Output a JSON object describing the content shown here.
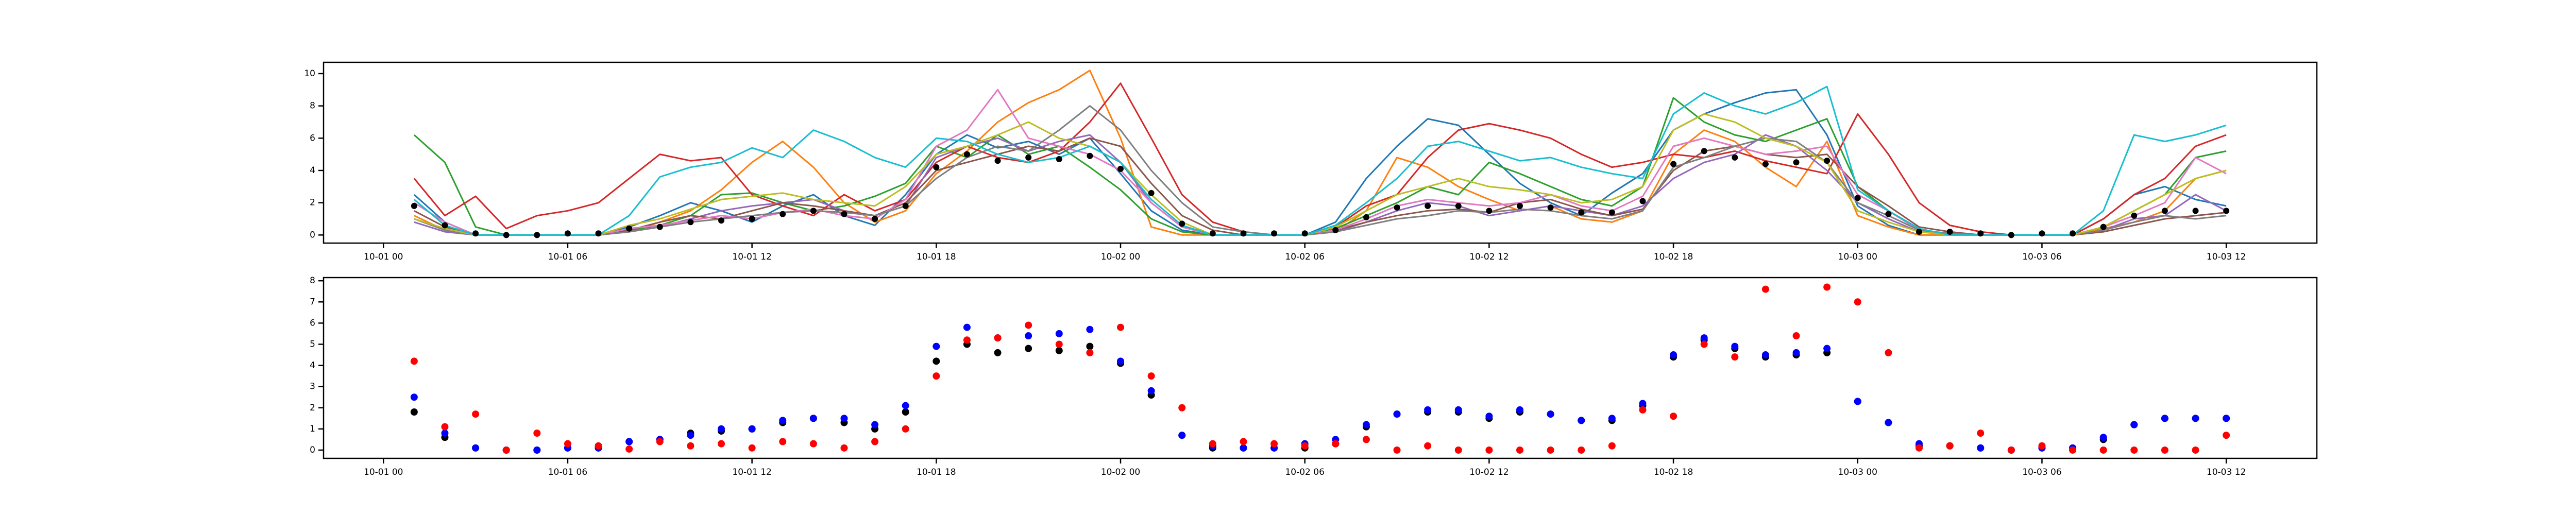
{
  "chart_data": [
    {
      "type": "line",
      "x": [
        "10-01 01",
        "10-01 02",
        "10-01 03",
        "10-01 04",
        "10-01 05",
        "10-01 06",
        "10-01 07",
        "10-01 08",
        "10-01 09",
        "10-01 10",
        "10-01 11",
        "10-01 12",
        "10-01 13",
        "10-01 14",
        "10-01 15",
        "10-01 16",
        "10-01 17",
        "10-01 18",
        "10-01 19",
        "10-01 20",
        "10-01 21",
        "10-01 22",
        "10-01 23",
        "10-02 00",
        "10-02 01",
        "10-02 02",
        "10-02 03",
        "10-02 04",
        "10-02 05",
        "10-02 06",
        "10-02 07",
        "10-02 08",
        "10-02 09",
        "10-02 10",
        "10-02 11",
        "10-02 12",
        "10-02 13",
        "10-02 14",
        "10-02 15",
        "10-02 16",
        "10-02 17",
        "10-02 18",
        "10-02 19",
        "10-02 20",
        "10-02 21",
        "10-02 22",
        "10-02 23",
        "10-03 00",
        "10-03 01",
        "10-03 02",
        "10-03 03",
        "10-03 04",
        "10-03 05",
        "10-03 06",
        "10-03 07",
        "10-03 08",
        "10-03 09",
        "10-03 10",
        "10-03 11",
        "10-03 12"
      ],
      "xlim": [
        "09-30 22:03",
        "10-03 14:57"
      ],
      "xticks": [
        "10-01 00",
        "10-01 06",
        "10-01 12",
        "10-01 18",
        "10-02 00",
        "10-02 06",
        "10-02 12",
        "10-02 18",
        "10-03 00",
        "10-03 06",
        "10-03 12"
      ],
      "ylim": [
        -0.5,
        10.7
      ],
      "yticks": [
        0,
        2,
        4,
        6,
        8,
        10
      ],
      "series": [
        {
          "color": "#1f77b4",
          "mode": "line",
          "values": [
            2.5,
            0.8,
            0,
            0,
            0,
            0,
            0,
            0.5,
            1.2,
            2.0,
            1.5,
            0.8,
            1.8,
            2.5,
            1.2,
            0.6,
            2.5,
            5.0,
            6.2,
            5.4,
            5.8,
            5.0,
            6.0,
            3.8,
            1.5,
            0.3,
            0,
            0,
            0,
            0,
            0.8,
            3.5,
            5.5,
            7.2,
            6.8,
            5.0,
            3.2,
            2.0,
            1.2,
            2.6,
            3.8,
            6.5,
            7.5,
            8.2,
            8.8,
            9.0,
            6.2,
            1.8,
            0.6,
            0,
            0,
            0,
            0,
            0,
            0,
            1.0,
            2.5,
            3.0,
            2.2,
            1.8
          ]
        },
        {
          "color": "#ff7f0e",
          "mode": "line",
          "values": [
            1.2,
            0.3,
            0,
            0,
            0,
            0,
            0,
            0.2,
            0.8,
            1.5,
            2.8,
            4.5,
            5.8,
            4.2,
            2.0,
            0.8,
            1.5,
            3.8,
            5.2,
            7.0,
            8.2,
            9.0,
            10.2,
            6.0,
            0.5,
            0,
            0,
            0,
            0,
            0,
            0.2,
            1.5,
            4.8,
            4.2,
            3.0,
            2.2,
            1.5,
            1.8,
            1.0,
            0.8,
            1.5,
            5.0,
            6.5,
            5.8,
            4.2,
            3.0,
            5.8,
            1.2,
            0.5,
            0,
            0,
            0,
            0,
            0,
            0,
            0.4,
            0.8,
            1.5,
            3.5,
            4.0
          ]
        },
        {
          "color": "#2ca02c",
          "mode": "line",
          "values": [
            6.2,
            4.5,
            0.5,
            0,
            0,
            0,
            0,
            0.3,
            0.6,
            1.2,
            2.5,
            2.6,
            2.0,
            1.5,
            1.8,
            2.4,
            3.2,
            5.5,
            4.8,
            6.2,
            5.0,
            5.5,
            4.2,
            2.8,
            1.0,
            0.2,
            0,
            0,
            0,
            0,
            0.4,
            1.2,
            2.0,
            3.0,
            2.5,
            4.5,
            3.8,
            3.0,
            2.2,
            1.8,
            3.0,
            8.5,
            7.0,
            6.2,
            5.8,
            6.5,
            7.2,
            3.0,
            1.5,
            0.3,
            0,
            0,
            0,
            0,
            0,
            0.5,
            1.5,
            2.5,
            4.8,
            5.2
          ]
        },
        {
          "color": "#d62728",
          "mode": "line",
          "values": [
            3.5,
            1.2,
            2.4,
            0.4,
            1.2,
            1.5,
            2.0,
            3.5,
            5.0,
            4.6,
            4.8,
            2.5,
            1.8,
            1.2,
            2.5,
            1.5,
            2.2,
            4.5,
            5.5,
            4.8,
            4.5,
            5.2,
            7.0,
            9.4,
            6.0,
            2.5,
            0.8,
            0.2,
            0,
            0,
            0.5,
            1.8,
            2.5,
            4.8,
            6.5,
            6.9,
            6.5,
            6.0,
            5.0,
            4.2,
            4.5,
            5.0,
            4.8,
            5.2,
            4.6,
            4.2,
            3.8,
            7.5,
            5.0,
            2.0,
            0.6,
            0.2,
            0,
            0,
            0,
            1.0,
            2.5,
            3.5,
            5.5,
            6.2
          ]
        },
        {
          "color": "#9467bd",
          "mode": "line",
          "values": [
            0.8,
            0.2,
            0,
            0,
            0,
            0,
            0,
            0.2,
            0.5,
            1.0,
            1.5,
            1.8,
            2.0,
            2.2,
            1.5,
            1.2,
            1.8,
            4.8,
            5.5,
            6.0,
            5.2,
            5.8,
            6.2,
            4.5,
            2.0,
            0.5,
            0,
            0,
            0,
            0,
            0.2,
            0.8,
            1.5,
            2.0,
            1.8,
            1.2,
            1.5,
            1.8,
            1.5,
            1.2,
            1.8,
            3.5,
            4.5,
            5.0,
            6.2,
            5.5,
            4.0,
            2.0,
            1.0,
            0.2,
            0,
            0,
            0,
            0,
            0,
            0.3,
            1.0,
            1.2,
            2.5,
            1.5
          ]
        },
        {
          "color": "#8c564b",
          "mode": "line",
          "values": [
            1.5,
            0.5,
            0,
            0,
            0,
            0,
            0,
            0.3,
            0.8,
            1.2,
            1.0,
            1.5,
            2.0,
            1.8,
            1.5,
            1.2,
            2.0,
            4.0,
            4.5,
            5.0,
            5.5,
            5.2,
            6.0,
            5.5,
            3.2,
            1.2,
            0.3,
            0,
            0,
            0,
            0.3,
            0.8,
            1.2,
            1.5,
            1.6,
            1.4,
            2.0,
            2.2,
            1.6,
            1.2,
            1.6,
            4.0,
            5.2,
            5.5,
            5.0,
            4.8,
            5.0,
            3.0,
            1.8,
            0.5,
            0.2,
            0,
            0,
            0,
            0,
            0.2,
            0.6,
            1.0,
            1.2,
            1.4
          ]
        },
        {
          "color": "#e377c2",
          "mode": "line",
          "values": [
            2.0,
            0.8,
            0,
            0,
            0,
            0,
            0,
            0.4,
            0.6,
            0.9,
            1.2,
            1.0,
            1.4,
            1.6,
            1.2,
            1.0,
            2.2,
            5.5,
            6.5,
            9.0,
            6.0,
            5.5,
            5.0,
            4.0,
            2.0,
            0.5,
            0,
            0,
            0,
            0,
            0.3,
            1.0,
            1.8,
            2.2,
            2.0,
            1.8,
            2.0,
            2.5,
            1.8,
            1.5,
            2.4,
            5.5,
            6.0,
            5.5,
            5.0,
            5.2,
            5.5,
            2.5,
            1.5,
            0.3,
            0,
            0,
            0,
            0,
            0,
            0.5,
            1.2,
            2.0,
            4.8,
            3.8
          ]
        },
        {
          "color": "#7f7f7f",
          "mode": "line",
          "values": [
            1.0,
            0.3,
            0,
            0,
            0,
            0,
            0,
            0.2,
            0.5,
            0.8,
            1.0,
            1.2,
            1.4,
            1.5,
            1.4,
            1.2,
            1.8,
            3.5,
            4.8,
            5.5,
            5.2,
            6.5,
            8.0,
            6.5,
            4.0,
            2.0,
            0.5,
            0.2,
            0,
            0,
            0.2,
            0.6,
            1.0,
            1.2,
            1.5,
            1.4,
            1.6,
            1.5,
            1.2,
            1.0,
            1.5,
            4.2,
            4.8,
            5.5,
            6.0,
            5.8,
            4.5,
            2.0,
            1.2,
            0.3,
            0.1,
            0,
            0,
            0,
            0,
            0.3,
            0.8,
            1.2,
            1.0,
            1.2
          ]
        },
        {
          "color": "#bcbd22",
          "mode": "line",
          "values": [
            1.0,
            0.4,
            0,
            0,
            0,
            0,
            0,
            0.6,
            1.0,
            1.6,
            2.2,
            2.4,
            2.6,
            2.2,
            2.0,
            1.8,
            3.0,
            5.0,
            5.5,
            6.2,
            7.0,
            6.0,
            5.5,
            4.5,
            2.5,
            0.8,
            0,
            0,
            0,
            0,
            0.5,
            1.5,
            2.5,
            3.0,
            3.5,
            3.0,
            2.8,
            2.5,
            2.0,
            2.2,
            3.0,
            6.5,
            7.5,
            7.0,
            6.0,
            5.5,
            4.5,
            1.5,
            0.8,
            0.2,
            0,
            0,
            0,
            0,
            0,
            0.5,
            1.5,
            2.5,
            3.5,
            4.0
          ]
        },
        {
          "color": "#17becf",
          "mode": "line",
          "values": [
            2.2,
            0.6,
            0,
            0,
            0,
            0,
            0,
            1.2,
            3.6,
            4.2,
            4.5,
            5.4,
            4.8,
            6.5,
            5.8,
            4.8,
            4.2,
            6.0,
            5.8,
            5.0,
            4.5,
            4.8,
            5.5,
            4.5,
            2.2,
            0.6,
            0,
            0,
            0,
            0,
            0.6,
            2.0,
            3.5,
            5.5,
            5.8,
            5.2,
            4.6,
            4.8,
            4.2,
            3.8,
            3.5,
            7.5,
            8.8,
            8.0,
            7.5,
            8.2,
            9.2,
            2.8,
            1.5,
            0.4,
            0,
            0,
            0,
            0,
            0,
            1.5,
            6.2,
            5.8,
            6.2,
            6.8
          ]
        },
        {
          "color": "#000000",
          "mode": "markers",
          "values": [
            1.8,
            0.6,
            0.1,
            0,
            0,
            0.1,
            0.1,
            0.4,
            0.5,
            0.8,
            0.9,
            1.0,
            1.3,
            1.5,
            1.3,
            1.0,
            1.8,
            4.2,
            5.0,
            4.6,
            4.8,
            4.7,
            4.9,
            4.1,
            2.6,
            0.7,
            0.1,
            0.1,
            0.1,
            0.1,
            0.3,
            1.1,
            1.7,
            1.8,
            1.8,
            1.5,
            1.8,
            1.7,
            1.4,
            1.4,
            2.1,
            4.4,
            5.2,
            4.8,
            4.4,
            4.5,
            4.6,
            2.3,
            1.3,
            0.2,
            0.2,
            0.1,
            0,
            0.1,
            0.1,
            0.5,
            1.2,
            1.5,
            1.5,
            1.5
          ]
        }
      ]
    },
    {
      "type": "scatter",
      "x": [
        "10-01 01",
        "10-01 02",
        "10-01 03",
        "10-01 04",
        "10-01 05",
        "10-01 06",
        "10-01 07",
        "10-01 08",
        "10-01 09",
        "10-01 10",
        "10-01 11",
        "10-01 12",
        "10-01 13",
        "10-01 14",
        "10-01 15",
        "10-01 16",
        "10-01 17",
        "10-01 18",
        "10-01 19",
        "10-01 20",
        "10-01 21",
        "10-01 22",
        "10-01 23",
        "10-02 00",
        "10-02 01",
        "10-02 02",
        "10-02 03",
        "10-02 04",
        "10-02 05",
        "10-02 06",
        "10-02 07",
        "10-02 08",
        "10-02 09",
        "10-02 10",
        "10-02 11",
        "10-02 12",
        "10-02 13",
        "10-02 14",
        "10-02 15",
        "10-02 16",
        "10-02 17",
        "10-02 18",
        "10-02 19",
        "10-02 20",
        "10-02 21",
        "10-02 22",
        "10-02 23",
        "10-03 00",
        "10-03 01",
        "10-03 02",
        "10-03 03",
        "10-03 04",
        "10-03 05",
        "10-03 06",
        "10-03 07",
        "10-03 08",
        "10-03 09",
        "10-03 10",
        "10-03 11",
        "10-03 12"
      ],
      "xlim": [
        "09-30 22:03",
        "10-03 14:57"
      ],
      "xticks": [
        "10-01 00",
        "10-01 06",
        "10-01 12",
        "10-01 18",
        "10-02 00",
        "10-02 06",
        "10-02 12",
        "10-02 18",
        "10-03 00",
        "10-03 06",
        "10-03 12"
      ],
      "ylim": [
        -0.39,
        8.15
      ],
      "yticks": [
        0,
        1,
        2,
        3,
        4,
        5,
        6,
        7,
        8
      ],
      "series": [
        {
          "color": "#000000",
          "values": [
            1.8,
            0.6,
            0.1,
            0,
            0,
            0.1,
            0.1,
            0.4,
            0.5,
            0.8,
            0.9,
            1.0,
            1.3,
            1.5,
            1.3,
            1.0,
            1.8,
            4.2,
            5.0,
            4.6,
            4.8,
            4.7,
            4.9,
            4.1,
            2.6,
            0.7,
            0.1,
            0.1,
            0.1,
            0.1,
            0.3,
            1.1,
            1.7,
            1.8,
            1.8,
            1.5,
            1.8,
            1.7,
            1.4,
            1.4,
            2.1,
            4.4,
            5.2,
            4.8,
            4.4,
            4.5,
            4.6,
            2.3,
            1.3,
            0.2,
            0.2,
            0.1,
            0,
            0.1,
            0.1,
            0.5,
            1.2,
            1.5,
            1.5,
            1.5
          ]
        },
        {
          "color": "#0000ff",
          "values": [
            2.5,
            0.8,
            0.1,
            0,
            0,
            0.1,
            0.1,
            0.4,
            0.5,
            0.7,
            1.0,
            1.0,
            1.4,
            1.5,
            1.5,
            1.2,
            2.1,
            4.9,
            5.8,
            5.3,
            5.4,
            5.5,
            5.7,
            4.2,
            2.8,
            0.7,
            0.2,
            0.1,
            0.1,
            0.3,
            0.5,
            1.2,
            1.7,
            1.9,
            1.9,
            1.6,
            1.9,
            1.7,
            1.4,
            1.5,
            2.2,
            4.5,
            5.3,
            4.9,
            4.5,
            4.6,
            4.8,
            2.3,
            1.3,
            0.3,
            0.2,
            0.1,
            0,
            0.1,
            0.1,
            0.6,
            1.2,
            1.5,
            1.5,
            1.5
          ]
        },
        {
          "color": "#ff0000",
          "values": [
            4.2,
            1.1,
            1.7,
            0,
            0.8,
            0.3,
            0.2,
            0.05,
            0.4,
            0.2,
            0.3,
            0.1,
            0.4,
            0.3,
            0.1,
            0.4,
            1.0,
            3.5,
            5.2,
            5.3,
            5.9,
            5.0,
            4.6,
            5.8,
            3.5,
            2.0,
            0.3,
            0.4,
            0.3,
            0.2,
            0.3,
            0.5,
            0,
            0.2,
            0,
            0,
            0,
            0,
            0,
            0.2,
            1.9,
            1.6,
            5.0,
            4.4,
            7.6,
            5.4,
            7.7,
            7.0,
            4.6,
            0.1,
            0.2,
            0.8,
            0,
            0.2,
            0,
            0,
            0,
            0,
            0,
            0.7
          ]
        }
      ]
    }
  ]
}
